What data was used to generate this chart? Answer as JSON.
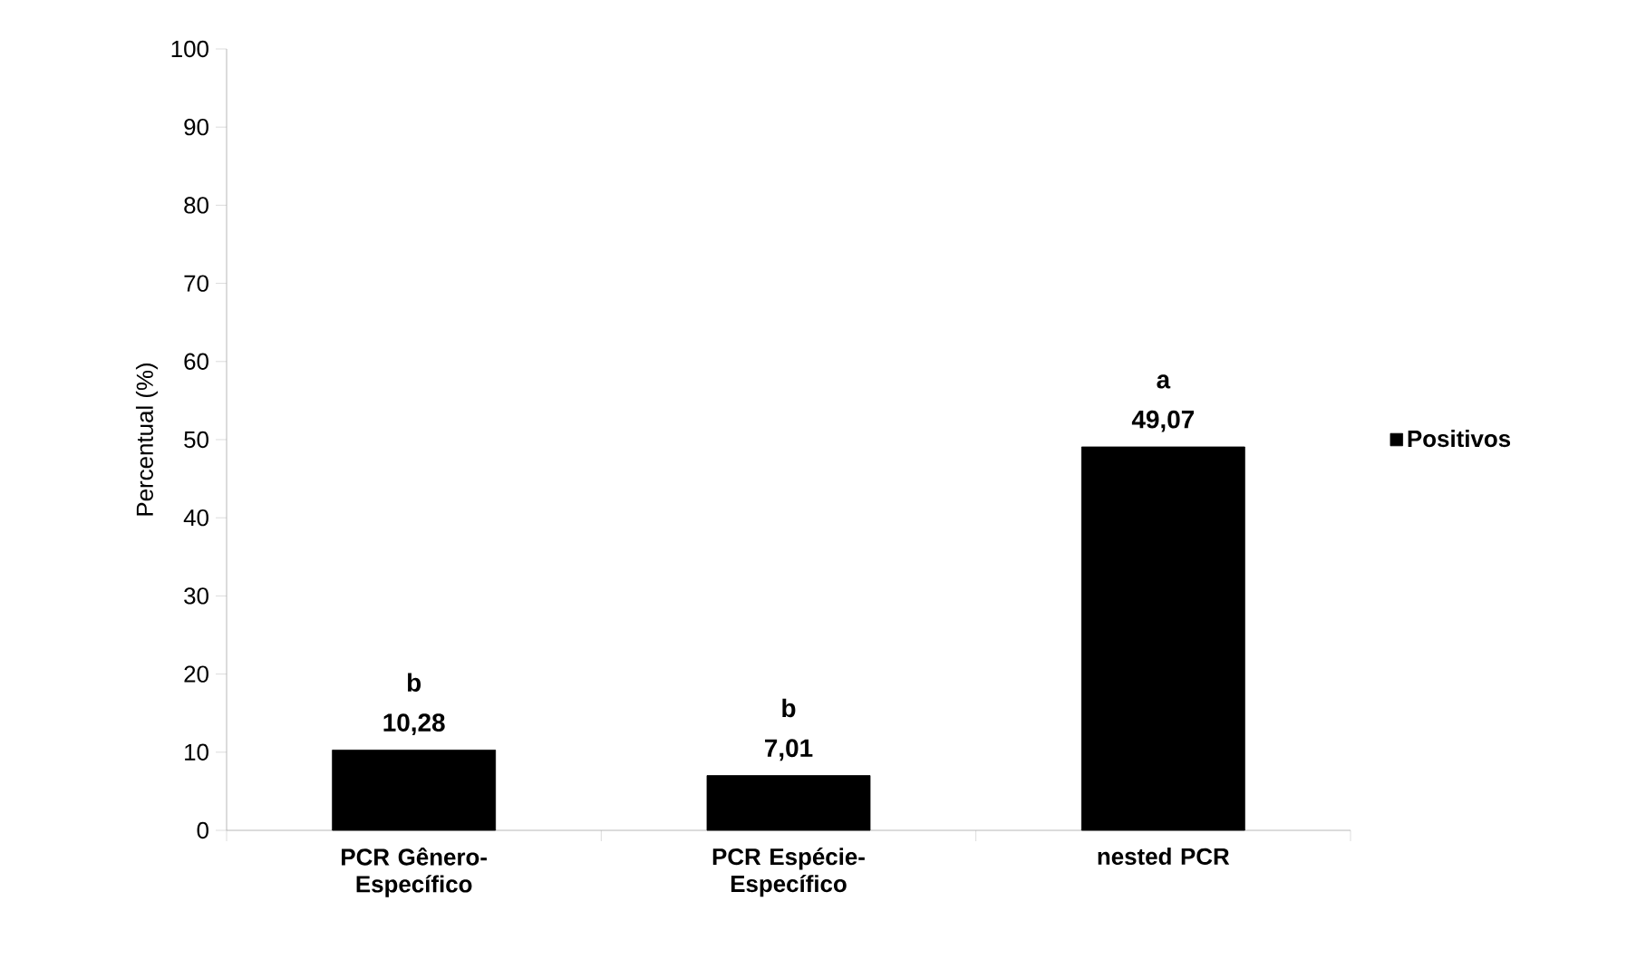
{
  "chart_data": {
    "type": "bar",
    "ylabel": "Percentual (%)",
    "categories": [
      "PCR Gênero-Específico",
      "PCR Espécie-Específico",
      "nested PCR"
    ],
    "series": [
      {
        "name": "Positivos",
        "color": "#000000",
        "values": [
          10.28,
          7.01,
          49.07
        ],
        "value_labels": [
          "10,28",
          "7,01",
          "49,07"
        ]
      }
    ],
    "ylim": [
      0,
      100
    ],
    "yticks": [
      0,
      10,
      20,
      30,
      40,
      50,
      60,
      70,
      80,
      90,
      100
    ],
    "annotations": [
      {
        "text": "b",
        "x": "PCR Gênero-Específico",
        "y": 10.28
      },
      {
        "text": "b",
        "x": "PCR Espécie-Específico",
        "y": 7.01
      },
      {
        "text": "a",
        "x": "nested PCR",
        "y": 49.07
      }
    ],
    "legend": "right",
    "grid": false
  }
}
